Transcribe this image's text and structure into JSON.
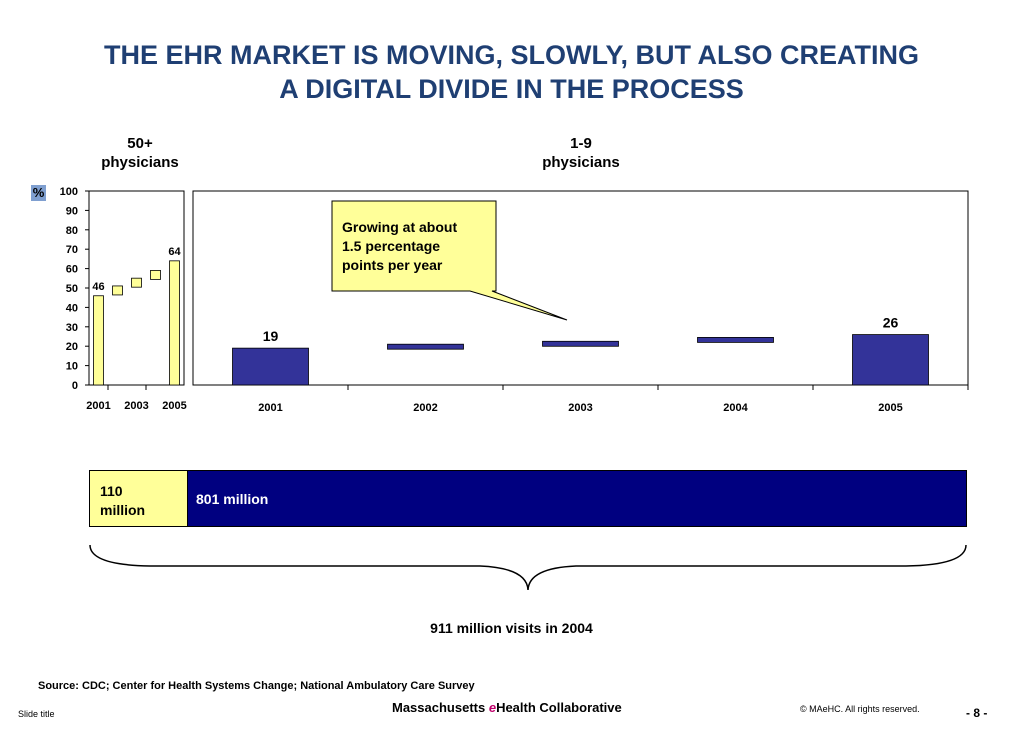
{
  "title_line1": "THE EHR MARKET IS MOVING, SLOWLY, BUT ALSO CREATING",
  "title_line2": "A DIGITAL DIVIDE IN THE PROCESS",
  "unit_label": "%",
  "callout": {
    "line1": "Growing at about",
    "line2": "1.5 percentage",
    "line3": "points per year"
  },
  "colors": {
    "title": "#1f3f73",
    "small_bar_fill": "#ffff99",
    "large_bar_fill": "#333399",
    "marker_fill": "#333399",
    "callout_fill": "#ffff99",
    "visit_small": "#ffff99",
    "visit_large": "#000080"
  },
  "chart_data": [
    {
      "type": "bar",
      "title": "50+ physicians",
      "title_line1": "50+",
      "title_line2": "physicians",
      "categories": [
        "2001",
        "2002",
        "2003",
        "2004",
        "2005"
      ],
      "tick_labels": [
        "2001",
        "2003",
        "2005"
      ],
      "values": [
        46,
        49,
        53,
        57,
        64
      ],
      "bar_style": [
        "bar",
        "marker",
        "marker",
        "marker",
        "bar"
      ],
      "data_labels": [
        "46",
        "",
        "",
        "",
        "64"
      ],
      "ylim": [
        0,
        100
      ],
      "yticks": [
        0,
        10,
        20,
        30,
        40,
        50,
        60,
        70,
        80,
        90,
        100
      ]
    },
    {
      "type": "bar",
      "title": "1-9 physicians",
      "title_line1": "1-9",
      "title_line2": "physicians",
      "categories": [
        "2001",
        "2002",
        "2003",
        "2004",
        "2005"
      ],
      "values": [
        19,
        20,
        21.5,
        23.5,
        26
      ],
      "bar_style": [
        "bar",
        "marker",
        "marker",
        "marker",
        "bar"
      ],
      "data_labels": [
        "19",
        "",
        "",
        "",
        "26"
      ],
      "ylim": [
        0,
        100
      ]
    },
    {
      "type": "bar",
      "orientation": "stacked-horizontal",
      "series": [
        {
          "name": "110 million",
          "value": 110,
          "label_line1": "110",
          "label_line2": "million"
        },
        {
          "name": "801 million",
          "value": 801,
          "label": "801 million"
        }
      ],
      "total_label": "911 million visits in 2004"
    }
  ],
  "source": "Source:  CDC; Center for Health Systems Change; National Ambulatory Care Survey",
  "footer": {
    "slide_title": "Slide title",
    "org_part1": "Massachusetts ",
    "org_e": "e",
    "org_part2": "Health Collaborative",
    "copyright": "© MAeHC.  All rights reserved.",
    "page": "- 8 -"
  }
}
